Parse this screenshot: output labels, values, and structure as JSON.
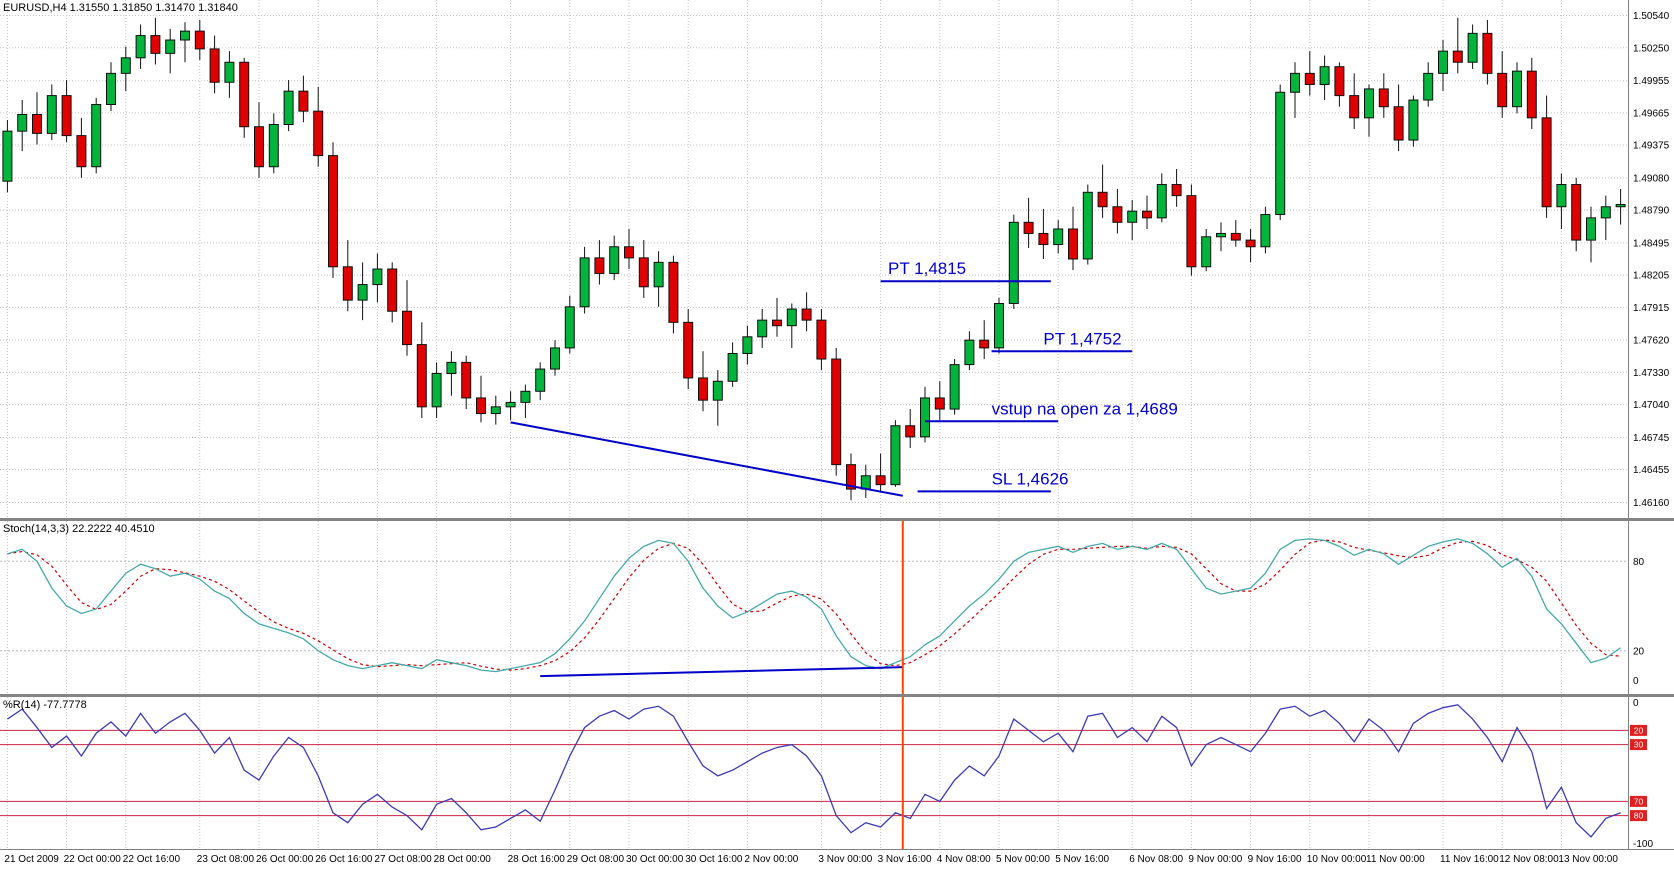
{
  "main_chart": {
    "label": "EURUSD,H4 1.31550 1.31850 1.31470 1.31840",
    "price_axis": [
      "1.50540",
      "1.50250",
      "1.49955",
      "1.49665",
      "1.49375",
      "1.49080",
      "1.48790",
      "1.48495",
      "1.48205",
      "1.47915",
      "1.47620",
      "1.47330",
      "1.47040",
      "1.46745",
      "1.46455",
      "1.46160"
    ],
    "annotations": [
      {
        "text": "PT 1,4815",
        "price": 1.4815,
        "line_from": 59,
        "line_to": 70.5,
        "text_index": 59.5
      },
      {
        "text": "PT 1,4752",
        "price": 1.4752,
        "line_from": 66.5,
        "line_to": 76,
        "text_index": 70
      },
      {
        "text": "vstup na open za 1,4689",
        "price": 1.4689,
        "line_from": 62,
        "line_to": 71,
        "text_index": 66.5
      },
      {
        "text": "SL 1,4626",
        "price": 1.4626,
        "line_from": 61.5,
        "line_to": 70.5,
        "text_index": 66.5
      }
    ],
    "trendline": {
      "from_index": 34,
      "from_price": 1.4688,
      "to_index": 60.5,
      "to_price": 1.4622
    }
  },
  "indicators": {
    "stochastic": {
      "label": "Stoch(14,3,3) 22.2222 40.4510",
      "axis": [
        {
          "text": "80",
          "value": 80
        },
        {
          "text": "20",
          "value": 20
        },
        {
          "text": "0",
          "value": 0
        }
      ],
      "levels": [
        80,
        20
      ],
      "trendline": {
        "from_index": 36,
        "from_value": 3,
        "to_index": 60.5,
        "to_value": 9
      }
    },
    "williams_r": {
      "label": "%R(14) -77.7778",
      "axis": [
        {
          "text": "0",
          "value": 0
        },
        {
          "text": "-100",
          "value": -100
        }
      ],
      "level_badges": [
        {
          "text": "20",
          "value": -20
        },
        {
          "text": "30",
          "value": -30
        },
        {
          "text": "70",
          "value": -70
        },
        {
          "text": "80",
          "value": -80
        }
      ]
    }
  },
  "time_axis": {
    "labels": [
      "21 Oct 2009",
      "22 Oct 00:00",
      "22 Oct 16:00",
      "23 Oct 08:00",
      "26 Oct 00:00",
      "26 Oct 16:00",
      "27 Oct 08:00",
      "28 Oct 00:00",
      "28 Oct 16:00",
      "29 Oct 08:00",
      "30 Oct 00:00",
      "30 Oct 16:00",
      "2 Nov 00:00",
      "3 Nov 00:00",
      "3 Nov 16:00",
      "4 Nov 08:00",
      "5 Nov 00:00",
      "5 Nov 16:00",
      "6 Nov 08:00",
      "9 Nov 00:00",
      "9 Nov 16:00",
      "10 Nov 00:00",
      "11 Nov 00:00",
      "11 Nov 16:00",
      "12 Nov 08:00",
      "13 Nov 00:00"
    ]
  },
  "colors": {
    "bull": "#00B43C",
    "bear": "#E00000",
    "wick": "#101010",
    "grid": "#C4C4C4",
    "annotation": "#0000C8",
    "stoch_main": "#46A9A9",
    "stoch_signal": "#CC0000",
    "stoch_level": "#B8B8B8",
    "wpr_line": "#3C3CB4",
    "wpr_level": "#CC2244",
    "level_badge_bg": "#E02020",
    "vline": "#FF4500",
    "axis_border": "#808080"
  },
  "chart_data": {
    "type": "candlestick+oscillators",
    "symbol": "EURUSD",
    "timeframe": "H4",
    "ylim_main": [
      1.4602,
      1.5068
    ],
    "vline_index": 60.5,
    "candles": [
      [
        1.4905,
        1.496,
        1.4895,
        1.495
      ],
      [
        1.495,
        1.4978,
        1.4932,
        1.4965
      ],
      [
        1.4965,
        1.4985,
        1.4938,
        1.4948
      ],
      [
        1.4948,
        1.4992,
        1.4942,
        1.4982
      ],
      [
        1.4982,
        1.4996,
        1.494,
        1.4946
      ],
      [
        1.4946,
        1.4962,
        1.4908,
        1.4918
      ],
      [
        1.4918,
        1.498,
        1.4912,
        1.4974
      ],
      [
        1.4974,
        1.5012,
        1.4968,
        1.5002
      ],
      [
        1.5002,
        1.5026,
        1.4986,
        1.5016
      ],
      [
        1.5016,
        1.5046,
        1.5006,
        1.5036
      ],
      [
        1.5036,
        1.5052,
        1.501,
        1.502
      ],
      [
        1.502,
        1.5042,
        1.5002,
        1.5032
      ],
      [
        1.5032,
        1.5048,
        1.5012,
        1.504
      ],
      [
        1.504,
        1.505,
        1.5014,
        1.5024
      ],
      [
        1.5024,
        1.5036,
        1.4984,
        1.4994
      ],
      [
        1.4994,
        1.5022,
        1.498,
        1.5012
      ],
      [
        1.5012,
        1.5016,
        1.4944,
        1.4954
      ],
      [
        1.4954,
        1.4976,
        1.4908,
        1.4918
      ],
      [
        1.4918,
        1.4966,
        1.4912,
        1.4956
      ],
      [
        1.4956,
        1.4996,
        1.495,
        1.4986
      ],
      [
        1.4986,
        1.5,
        1.4958,
        1.4968
      ],
      [
        1.4968,
        1.499,
        1.4918,
        1.4928
      ],
      [
        1.4928,
        1.494,
        1.4818,
        1.4828
      ],
      [
        1.4828,
        1.4852,
        1.4788,
        1.4798
      ],
      [
        1.4798,
        1.4832,
        1.478,
        1.4812
      ],
      [
        1.4812,
        1.484,
        1.4796,
        1.4826
      ],
      [
        1.4826,
        1.4832,
        1.4778,
        1.4788
      ],
      [
        1.4788,
        1.4816,
        1.4748,
        1.4758
      ],
      [
        1.4758,
        1.4778,
        1.4692,
        1.4702
      ],
      [
        1.4702,
        1.4742,
        1.4692,
        1.4732
      ],
      [
        1.4732,
        1.4752,
        1.4712,
        1.4742
      ],
      [
        1.4742,
        1.4748,
        1.47,
        1.471
      ],
      [
        1.471,
        1.473,
        1.4688,
        1.4696
      ],
      [
        1.4696,
        1.4712,
        1.4686,
        1.4702
      ],
      [
        1.4702,
        1.4716,
        1.469,
        1.4706
      ],
      [
        1.4706,
        1.4722,
        1.4692,
        1.4716
      ],
      [
        1.4716,
        1.4742,
        1.4708,
        1.4736
      ],
      [
        1.4736,
        1.4762,
        1.473,
        1.4755
      ],
      [
        1.4755,
        1.4802,
        1.475,
        1.4792
      ],
      [
        1.4792,
        1.4846,
        1.4786,
        1.4836
      ],
      [
        1.4836,
        1.4852,
        1.4812,
        1.4822
      ],
      [
        1.4822,
        1.4856,
        1.4816,
        1.4846
      ],
      [
        1.4846,
        1.4862,
        1.4826,
        1.4836
      ],
      [
        1.4836,
        1.4852,
        1.48,
        1.481
      ],
      [
        1.481,
        1.4842,
        1.4792,
        1.4832
      ],
      [
        1.4832,
        1.4838,
        1.4768,
        1.4778
      ],
      [
        1.4778,
        1.479,
        1.4718,
        1.4728
      ],
      [
        1.4728,
        1.4752,
        1.4698,
        1.4708
      ],
      [
        1.4708,
        1.4735,
        1.4685,
        1.4725
      ],
      [
        1.4725,
        1.476,
        1.472,
        1.475
      ],
      [
        1.475,
        1.4775,
        1.474,
        1.4765
      ],
      [
        1.4765,
        1.479,
        1.4755,
        1.478
      ],
      [
        1.478,
        1.48,
        1.4765,
        1.4775
      ],
      [
        1.4775,
        1.4795,
        1.4755,
        1.479
      ],
      [
        1.479,
        1.4805,
        1.477,
        1.478
      ],
      [
        1.478,
        1.479,
        1.4735,
        1.4745
      ],
      [
        1.4745,
        1.4755,
        1.464,
        1.465
      ],
      [
        1.465,
        1.466,
        1.4618,
        1.4628
      ],
      [
        1.4628,
        1.465,
        1.462,
        1.464
      ],
      [
        1.464,
        1.466,
        1.4625,
        1.4632
      ],
      [
        1.4632,
        1.469,
        1.463,
        1.4685
      ],
      [
        1.4685,
        1.47,
        1.4665,
        1.4675
      ],
      [
        1.4675,
        1.472,
        1.467,
        1.471
      ],
      [
        1.471,
        1.4725,
        1.469,
        1.47
      ],
      [
        1.47,
        1.4745,
        1.4695,
        1.474
      ],
      [
        1.474,
        1.477,
        1.4735,
        1.4762
      ],
      [
        1.4762,
        1.478,
        1.4745,
        1.4755
      ],
      [
        1.4755,
        1.48,
        1.475,
        1.4795
      ],
      [
        1.4795,
        1.4875,
        1.479,
        1.4868
      ],
      [
        1.4868,
        1.489,
        1.4845,
        1.4858
      ],
      [
        1.4858,
        1.488,
        1.4835,
        1.4848
      ],
      [
        1.4848,
        1.487,
        1.484,
        1.4862
      ],
      [
        1.4862,
        1.4882,
        1.4825,
        1.4835
      ],
      [
        1.4835,
        1.4902,
        1.483,
        1.4895
      ],
      [
        1.4895,
        1.492,
        1.4872,
        1.4882
      ],
      [
        1.4882,
        1.4898,
        1.4858,
        1.4868
      ],
      [
        1.4868,
        1.4888,
        1.4852,
        1.4878
      ],
      [
        1.4878,
        1.4892,
        1.4862,
        1.4872
      ],
      [
        1.4872,
        1.4912,
        1.4868,
        1.4902
      ],
      [
        1.4902,
        1.4916,
        1.4882,
        1.4892
      ],
      [
        1.4892,
        1.4902,
        1.482,
        1.4828
      ],
      [
        1.4828,
        1.4862,
        1.4824,
        1.4855
      ],
      [
        1.4855,
        1.4868,
        1.4842,
        1.4858
      ],
      [
        1.4858,
        1.487,
        1.4846,
        1.4852
      ],
      [
        1.4852,
        1.4862,
        1.4832,
        1.4846
      ],
      [
        1.4846,
        1.4882,
        1.484,
        1.4875
      ],
      [
        1.4875,
        1.4992,
        1.487,
        1.4985
      ],
      [
        1.4985,
        1.5012,
        1.4962,
        1.5002
      ],
      [
        1.5002,
        1.5022,
        1.4982,
        1.4992
      ],
      [
        1.4992,
        1.5018,
        1.4978,
        1.5008
      ],
      [
        1.5008,
        1.5012,
        1.4972,
        1.4982
      ],
      [
        1.4982,
        1.5002,
        1.4952,
        1.4962
      ],
      [
        1.4962,
        1.4992,
        1.4945,
        1.4988
      ],
      [
        1.4988,
        1.5002,
        1.4962,
        1.4972
      ],
      [
        1.4972,
        1.4992,
        1.4932,
        1.4942
      ],
      [
        1.4942,
        1.4982,
        1.4936,
        1.4978
      ],
      [
        1.4978,
        1.5012,
        1.4972,
        1.5002
      ],
      [
        1.5002,
        1.5032,
        1.4986,
        1.5022
      ],
      [
        1.5022,
        1.5052,
        1.5002,
        1.5012
      ],
      [
        1.5012,
        1.5046,
        1.5006,
        1.5038
      ],
      [
        1.5038,
        1.505,
        1.4992,
        1.5002
      ],
      [
        1.5002,
        1.5022,
        1.4962,
        1.4972
      ],
      [
        1.4972,
        1.5012,
        1.4966,
        1.5004
      ],
      [
        1.5004,
        1.5016,
        1.4952,
        1.4962
      ],
      [
        1.4962,
        1.4982,
        1.4872,
        1.4882
      ],
      [
        1.4882,
        1.4912,
        1.4862,
        1.4902
      ],
      [
        1.4902,
        1.4908,
        1.4842,
        1.4852
      ],
      [
        1.4852,
        1.4882,
        1.4832,
        1.4872
      ],
      [
        1.4872,
        1.4892,
        1.4852,
        1.4882
      ],
      [
        1.4882,
        1.4898,
        1.4866,
        1.4884
      ]
    ],
    "stochastic_main": [
      85,
      88,
      80,
      62,
      50,
      45,
      48,
      60,
      72,
      78,
      75,
      70,
      72,
      68,
      60,
      55,
      45,
      38,
      35,
      32,
      28,
      20,
      14,
      10,
      8,
      10,
      12,
      10,
      8,
      14,
      12,
      10,
      7,
      6,
      8,
      10,
      12,
      18,
      28,
      40,
      55,
      70,
      82,
      90,
      94,
      92,
      80,
      62,
      50,
      42,
      46,
      52,
      58,
      60,
      56,
      48,
      30,
      16,
      10,
      8,
      12,
      16,
      24,
      30,
      40,
      50,
      58,
      68,
      80,
      86,
      88,
      90,
      86,
      90,
      92,
      88,
      90,
      88,
      92,
      88,
      75,
      62,
      58,
      60,
      62,
      72,
      88,
      94,
      95,
      94,
      90,
      84,
      88,
      85,
      78,
      84,
      90,
      93,
      95,
      92,
      85,
      76,
      82,
      70,
      48,
      38,
      25,
      12,
      15,
      22
    ],
    "williams_r": [
      -12,
      -5,
      -18,
      -32,
      -24,
      -38,
      -22,
      -14,
      -24,
      -8,
      -22,
      -14,
      -8,
      -20,
      -36,
      -25,
      -48,
      -55,
      -38,
      -25,
      -32,
      -52,
      -78,
      -85,
      -72,
      -65,
      -74,
      -80,
      -90,
      -72,
      -68,
      -78,
      -90,
      -88,
      -82,
      -76,
      -84,
      -62,
      -38,
      -18,
      -10,
      -6,
      -12,
      -5,
      -3,
      -10,
      -28,
      -45,
      -52,
      -48,
      -42,
      -36,
      -32,
      -30,
      -38,
      -52,
      -80,
      -92,
      -85,
      -88,
      -78,
      -82,
      -65,
      -70,
      -55,
      -45,
      -52,
      -38,
      -12,
      -20,
      -28,
      -22,
      -35,
      -10,
      -8,
      -25,
      -18,
      -28,
      -10,
      -18,
      -45,
      -30,
      -25,
      -30,
      -35,
      -22,
      -5,
      -3,
      -10,
      -6,
      -15,
      -28,
      -12,
      -20,
      -35,
      -15,
      -8,
      -4,
      -2,
      -12,
      -25,
      -42,
      -18,
      -35,
      -75,
      -60,
      -85,
      -95,
      -82,
      -78
    ]
  }
}
